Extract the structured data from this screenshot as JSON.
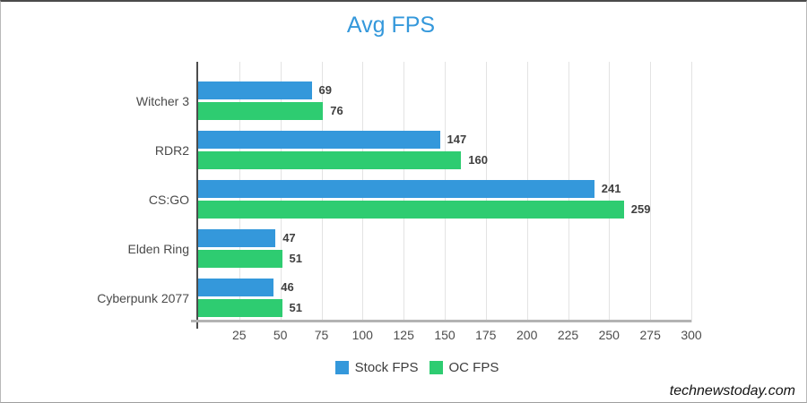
{
  "title": "Avg FPS",
  "watermark": "technewstoday.com",
  "colors": {
    "title_blue": "#3498db",
    "stock_blue": "#3498db",
    "oc_green": "#2ecc71",
    "gridline": "#e3e3e3"
  },
  "chart_data": {
    "type": "bar",
    "orientation": "horizontal",
    "title": "Avg FPS",
    "categories": [
      "Witcher 3",
      "RDR2",
      "CS:GO",
      "Elden Ring",
      "Cyberpunk 2077"
    ],
    "series": [
      {
        "name": "Stock FPS",
        "color": "#3498db",
        "values": [
          69,
          147,
          241,
          47,
          46
        ]
      },
      {
        "name": "OC FPS",
        "color": "#2ecc71",
        "values": [
          76,
          160,
          259,
          51,
          51
        ]
      }
    ],
    "xlim": [
      0,
      300
    ],
    "xticks": [
      25,
      50,
      75,
      100,
      125,
      150,
      175,
      200,
      225,
      250,
      275,
      300
    ],
    "grid": true,
    "value_labels": true,
    "legend_position": "bottom"
  }
}
